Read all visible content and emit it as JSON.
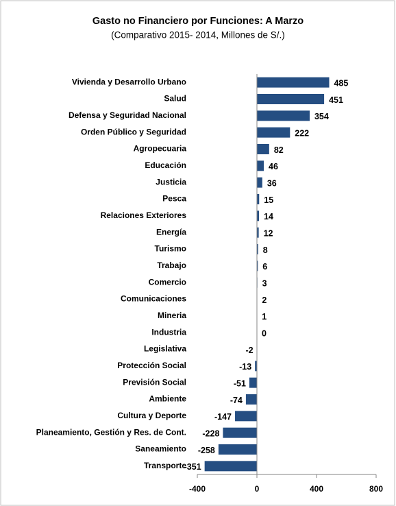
{
  "chart_data": {
    "type": "bar",
    "orientation": "horizontal",
    "title": "Gasto no Financiero por Funciones: A Marzo",
    "subtitle": "(Comparativo 2015-  2014, Millones de S/.)",
    "categories": [
      "Vivienda y Desarrollo Urbano",
      "Salud",
      "Defensa y Seguridad Nacional",
      "Orden Público  y Seguridad",
      "Agropecuaria",
      "Educación",
      "Justicia",
      "Pesca",
      "Relaciones Exteriores",
      "Energía",
      "Turismo",
      "Trabajo",
      "Comercio",
      "Comunicaciones",
      "Mineria",
      "Industria",
      "Legislativa",
      "Protección Social",
      "Previsión Social",
      "Ambiente",
      "Cultura y Deporte",
      "Planeamiento, Gestión y Res. de Cont.",
      "Saneamiento",
      "Transporte"
    ],
    "values": [
      485,
      451,
      354,
      222,
      82,
      46,
      36,
      15,
      14,
      12,
      8,
      6,
      3,
      2,
      1,
      0,
      -2,
      -13,
      -51,
      -74,
      -147,
      -228,
      -258,
      -351
    ],
    "color": "#254e82",
    "xlim": [
      -400,
      800
    ],
    "xticks": [
      -400,
      0,
      400,
      800
    ],
    "grid": false
  }
}
